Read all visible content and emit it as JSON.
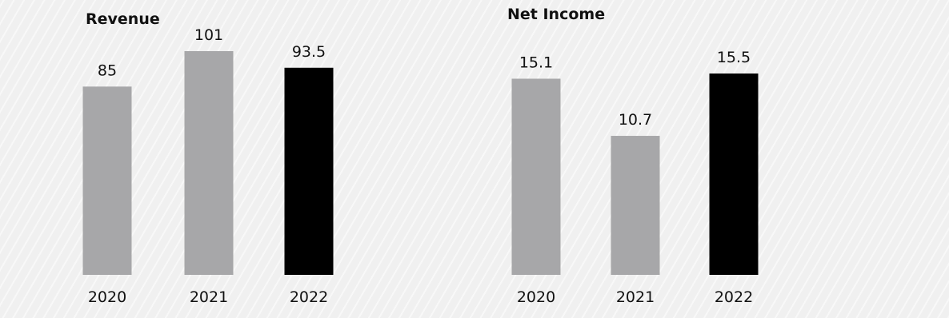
{
  "chart_data": [
    {
      "type": "bar",
      "title": "Revenue",
      "xlabel": "",
      "ylabel": "",
      "categories": [
        "2020",
        "2021",
        "2022"
      ],
      "values": [
        85,
        101,
        93.5
      ],
      "value_labels": [
        "85",
        "101",
        "93.5"
      ],
      "ylim": [
        0,
        101
      ],
      "grid": false,
      "colors": [
        "#a7a7a9",
        "#a7a7a9",
        "#000000"
      ]
    },
    {
      "type": "bar",
      "title": "Net Income",
      "xlabel": "",
      "ylabel": "",
      "categories": [
        "2020",
        "2021",
        "2022"
      ],
      "values": [
        15.1,
        10.7,
        15.5
      ],
      "value_labels": [
        "15.1",
        "10.7",
        "15.5"
      ],
      "ylim": [
        0,
        15.5
      ],
      "grid": false,
      "colors": [
        "#a7a7a9",
        "#a7a7a9",
        "#000000"
      ]
    }
  ]
}
